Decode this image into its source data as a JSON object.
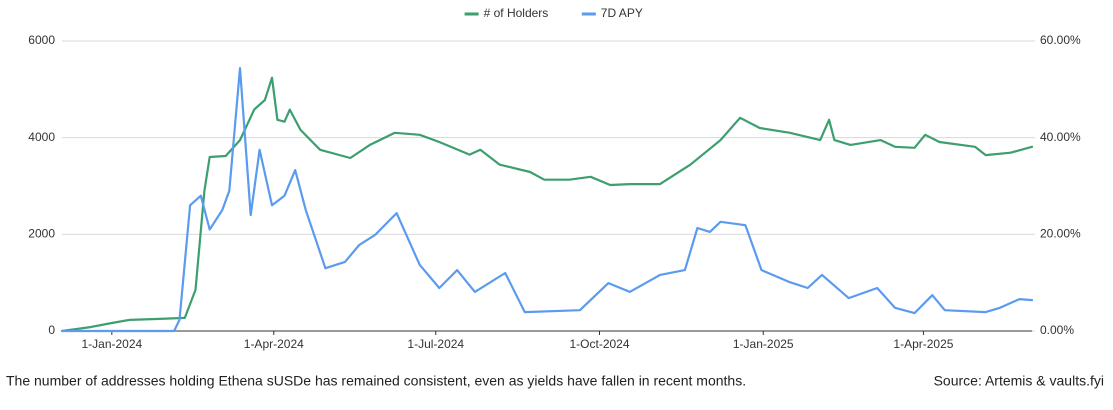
{
  "chart_data": {
    "type": "line",
    "caption": "The number of addresses holding Ethena sUSDe has remained consistent, even as yields have fallen in recent months.",
    "source": "Source: Artemis & vaults.fyi",
    "xlim": [
      "2023-12-04",
      "2025-06-01"
    ],
    "xticks": [
      {
        "value": "2024-01-01",
        "label": "1-Jan-2024"
      },
      {
        "value": "2024-04-01",
        "label": "1-Apr-2024"
      },
      {
        "value": "2024-07-01",
        "label": "1-Jul-2024"
      },
      {
        "value": "2024-10-01",
        "label": "1-Oct-2024"
      },
      {
        "value": "2025-01-01",
        "label": "1-Jan-2025"
      },
      {
        "value": "2025-04-01",
        "label": "1-Apr-2025"
      }
    ],
    "ylim": [
      0,
      6000
    ],
    "yticks": [
      0,
      2000,
      4000,
      6000
    ],
    "y2lim": [
      0,
      60
    ],
    "y2ticks": [
      {
        "value": 0,
        "label": "0.00%"
      },
      {
        "value": 20,
        "label": "20.00%"
      },
      {
        "value": 40,
        "label": "40.00%"
      },
      {
        "value": 60,
        "label": "60.00%"
      }
    ],
    "grid": true,
    "legend": "top",
    "series": [
      {
        "name": "# of Holders",
        "color": "#3d9e6e",
        "x": [
          "2023-12-04",
          "2023-12-20",
          "2024-01-01",
          "2024-01-11",
          "2024-01-28",
          "2024-02-11",
          "2024-02-17",
          "2024-02-22",
          "2024-02-25",
          "2024-03-05",
          "2024-03-13",
          "2024-03-21",
          "2024-03-27",
          "2024-03-31",
          "2024-04-03",
          "2024-04-07",
          "2024-04-10",
          "2024-04-16",
          "2024-04-27",
          "2024-05-14",
          "2024-05-25",
          "2024-06-08",
          "2024-06-22",
          "2024-07-03",
          "2024-07-20",
          "2024-07-26",
          "2024-08-06",
          "2024-08-23",
          "2024-08-31",
          "2024-09-14",
          "2024-09-26",
          "2024-10-07",
          "2024-10-18",
          "2024-11-04",
          "2024-11-21",
          "2024-12-08",
          "2024-12-19",
          "2024-12-30",
          "2025-01-16",
          "2025-02-02",
          "2025-02-07",
          "2025-02-10",
          "2025-02-19",
          "2025-03-08",
          "2025-03-16",
          "2025-03-27",
          "2025-04-02",
          "2025-04-10",
          "2025-04-30",
          "2025-05-06",
          "2025-05-20",
          "2025-06-01"
        ],
        "values": [
          0,
          80,
          165,
          230,
          250,
          270,
          850,
          2900,
          3600,
          3620,
          3950,
          4580,
          4780,
          5240,
          4370,
          4330,
          4580,
          4160,
          3750,
          3580,
          3850,
          4100,
          4060,
          3910,
          3650,
          3750,
          3440,
          3290,
          3130,
          3130,
          3190,
          3020,
          3040,
          3040,
          3440,
          3950,
          4410,
          4200,
          4100,
          3950,
          4370,
          3950,
          3850,
          3950,
          3810,
          3790,
          4060,
          3910,
          3810,
          3640,
          3690,
          3810
        ]
      },
      {
        "name": "7D APY",
        "color": "#5b9bef",
        "axis": "y2",
        "x": [
          "2023-12-04",
          "2024-02-05",
          "2024-02-08",
          "2024-02-14",
          "2024-02-20",
          "2024-02-25",
          "2024-03-03",
          "2024-03-07",
          "2024-03-13",
          "2024-03-19",
          "2024-03-24",
          "2024-03-31",
          "2024-04-07",
          "2024-04-13",
          "2024-04-19",
          "2024-04-30",
          "2024-05-11",
          "2024-05-19",
          "2024-05-28",
          "2024-06-09",
          "2024-06-22",
          "2024-07-03",
          "2024-07-13",
          "2024-07-23",
          "2024-08-09",
          "2024-08-20",
          "2024-09-20",
          "2024-10-06",
          "2024-10-18",
          "2024-11-04",
          "2024-11-18",
          "2024-11-25",
          "2024-12-02",
          "2024-12-08",
          "2024-12-22",
          "2024-12-31",
          "2025-01-16",
          "2025-01-26",
          "2025-02-03",
          "2025-02-18",
          "2025-03-06",
          "2025-03-16",
          "2025-03-27",
          "2025-04-06",
          "2025-04-13",
          "2025-05-06",
          "2025-05-14",
          "2025-05-25",
          "2025-06-01"
        ],
        "values": [
          0,
          0,
          2.3,
          26,
          28,
          21,
          25,
          29,
          54.4,
          24,
          37.5,
          26,
          28,
          33.3,
          25,
          13,
          14.3,
          17.8,
          19.9,
          24.4,
          13.7,
          8.9,
          12.6,
          8.1,
          12,
          3.9,
          4.3,
          9.9,
          8.1,
          11.6,
          12.6,
          21.3,
          20.5,
          22.6,
          21.9,
          12.6,
          10.1,
          8.9,
          11.6,
          6.8,
          8.9,
          4.8,
          3.7,
          7.4,
          4.3,
          3.9,
          4.8,
          6.6,
          6.4
        ]
      }
    ]
  }
}
